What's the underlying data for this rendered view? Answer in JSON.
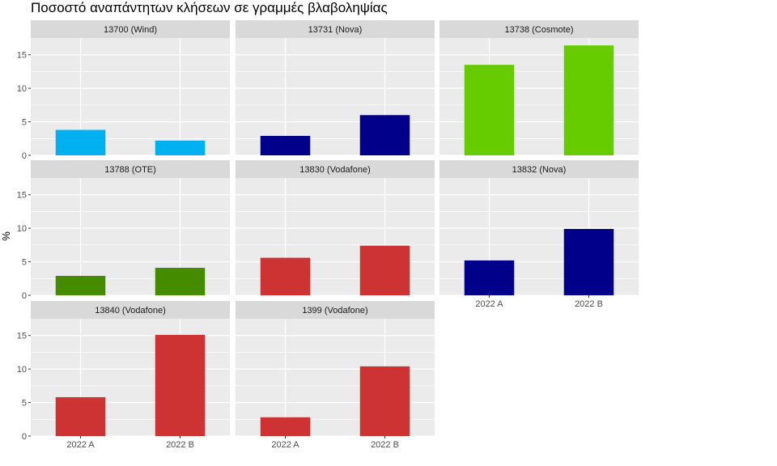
{
  "title": "Ποσοστό αναπάντητων κλήσεων σε γραμμές βλαβοληψίας",
  "chart_data": {
    "type": "bar",
    "title": "Ποσοστό αναπάντητων κλήσεων σε γραμμές βλαβοληψίας",
    "xlabel": "",
    "ylabel": "%",
    "categories": [
      "2022 A",
      "2022 B"
    ],
    "ylim": [
      0,
      17.5
    ],
    "yticks": [
      0,
      5,
      10,
      15
    ],
    "grid": true,
    "facets": [
      {
        "name": "13700 (Wind)",
        "color": "#00b0f0",
        "values": [
          3.8,
          2.2
        ]
      },
      {
        "name": "13731 (Nova)",
        "color": "#00008b",
        "values": [
          2.9,
          6.0
        ]
      },
      {
        "name": "13738 (Cosmote)",
        "color": "#66cc00",
        "values": [
          13.5,
          16.4
        ]
      },
      {
        "name": "13788 (OTE)",
        "color": "#458b00",
        "values": [
          2.9,
          4.1
        ]
      },
      {
        "name": "13830 (Vodafone)",
        "color": "#cd3333",
        "values": [
          5.6,
          7.4
        ]
      },
      {
        "name": "13832 (Nova)",
        "color": "#00008b",
        "values": [
          5.2,
          9.9
        ]
      },
      {
        "name": "13840 (Vodafone)",
        "color": "#cd3333",
        "values": [
          5.8,
          15.1
        ]
      },
      {
        "name": "1399 (Vodafone)",
        "color": "#cd3333",
        "values": [
          2.8,
          10.4
        ]
      }
    ]
  }
}
